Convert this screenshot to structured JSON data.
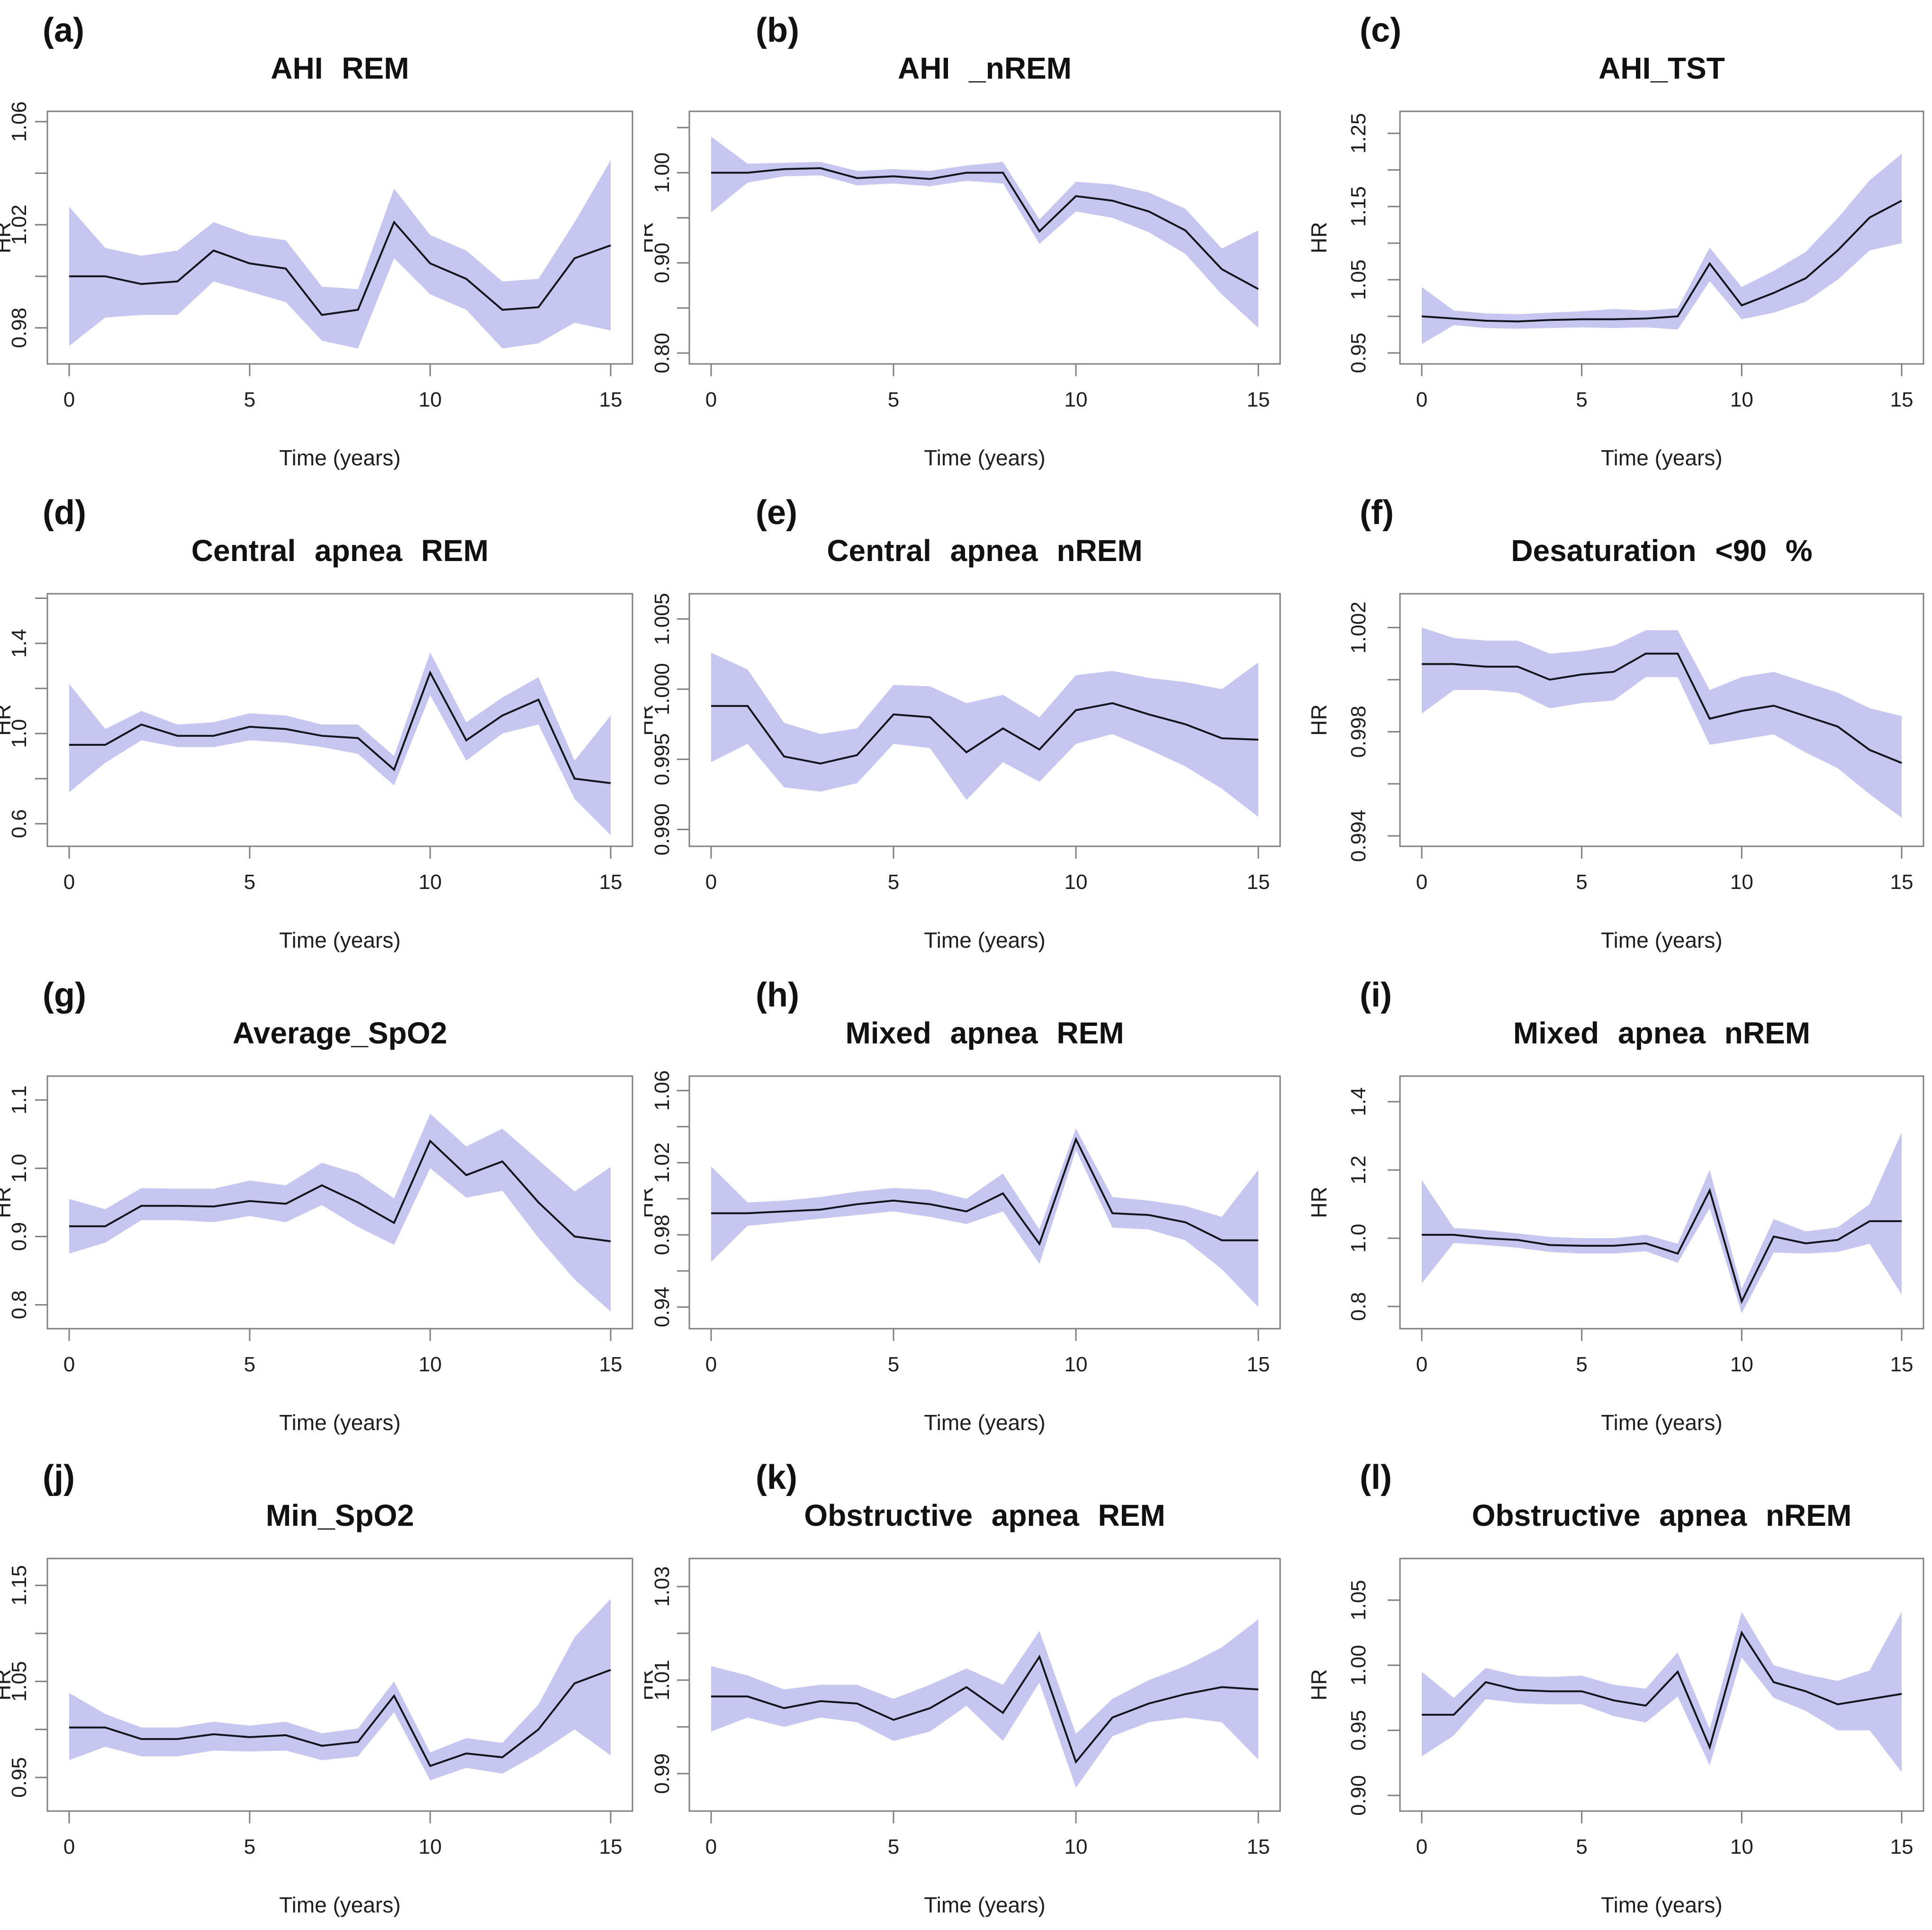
{
  "figure": {
    "background": "#ffffff",
    "band_color": "#c6c6f0",
    "line_color": "#14141d",
    "frame_color": "#7f7f7f",
    "text_color": "#1e1e1e",
    "title_color": "#111111",
    "xlabel": "Time (years)",
    "ylabel": "HR",
    "x_ticks": [
      {
        "v": 0,
        "t": "0"
      },
      {
        "v": 5,
        "t": "5"
      },
      {
        "v": 10,
        "t": "10"
      },
      {
        "v": 15,
        "t": "15"
      }
    ],
    "x_range": [
      0,
      15
    ]
  },
  "chart_data": [
    {
      "type": "line",
      "panel": "a",
      "label": "(a)",
      "title": "AHI REM",
      "xlabel": "Time (years)",
      "ylabel": "HR",
      "legend": "none",
      "grid": false,
      "x": [
        0,
        1,
        2,
        3,
        4,
        5,
        6,
        7,
        8,
        9,
        10,
        11,
        12,
        13,
        14,
        15
      ],
      "hr": [
        1.0,
        1.0,
        0.997,
        0.998,
        1.01,
        1.005,
        1.003,
        0.985,
        0.987,
        1.021,
        1.005,
        0.999,
        0.987,
        0.988,
        1.007,
        1.012
      ],
      "ci_upper": [
        1.027,
        1.011,
        1.008,
        1.01,
        1.021,
        1.016,
        1.014,
        0.996,
        0.995,
        1.034,
        1.016,
        1.01,
        0.998,
        0.999,
        1.021,
        1.045
      ],
      "ci_lower": [
        0.973,
        0.984,
        0.985,
        0.985,
        0.998,
        0.994,
        0.99,
        0.975,
        0.972,
        1.007,
        0.993,
        0.987,
        0.972,
        0.974,
        0.982,
        0.979
      ],
      "ylim": [
        0.966,
        1.064
      ],
      "yticks": [
        {
          "v": 0.98,
          "t": "0.98"
        },
        {
          "v": 1.0,
          "t": ""
        },
        {
          "v": 1.02,
          "t": "1.02"
        },
        {
          "v": 1.04,
          "t": ""
        },
        {
          "v": 1.06,
          "t": "1.06"
        }
      ]
    },
    {
      "type": "line",
      "panel": "b",
      "label": "(b)",
      "title": "AHI _nREM",
      "xlabel": "Time (years)",
      "ylabel": "HR",
      "legend": "none",
      "grid": false,
      "x": [
        0,
        1,
        2,
        3,
        4,
        5,
        6,
        7,
        8,
        9,
        10,
        11,
        12,
        13,
        14,
        15
      ],
      "hr": [
        1.0,
        1.0,
        1.004,
        1.005,
        0.994,
        0.996,
        0.993,
        1.0,
        1.0,
        0.935,
        0.974,
        0.969,
        0.957,
        0.936,
        0.893,
        0.871
      ],
      "ci_upper": [
        1.04,
        1.01,
        1.011,
        1.012,
        1.002,
        1.004,
        1.002,
        1.008,
        1.012,
        0.948,
        0.99,
        0.987,
        0.978,
        0.96,
        0.916,
        0.936
      ],
      "ci_lower": [
        0.956,
        0.989,
        0.996,
        0.997,
        0.986,
        0.988,
        0.985,
        0.991,
        0.988,
        0.921,
        0.957,
        0.95,
        0.934,
        0.91,
        0.865,
        0.828
      ],
      "ylim": [
        0.788,
        1.068
      ],
      "yticks": [
        {
          "v": 0.8,
          "t": "0.80"
        },
        {
          "v": 0.85,
          "t": ""
        },
        {
          "v": 0.9,
          "t": "0.90"
        },
        {
          "v": 0.95,
          "t": ""
        },
        {
          "v": 1.0,
          "t": "1.00"
        },
        {
          "v": 1.05,
          "t": ""
        }
      ]
    },
    {
      "type": "line",
      "panel": "c",
      "label": "(c)",
      "title": "AHI_TST",
      "xlabel": "Time (years)",
      "ylabel": "HR",
      "legend": "none",
      "grid": false,
      "x": [
        0,
        1,
        2,
        3,
        4,
        5,
        6,
        7,
        8,
        9,
        10,
        11,
        12,
        13,
        14,
        15
      ],
      "hr": [
        1.0,
        0.997,
        0.994,
        0.993,
        0.995,
        0.996,
        0.996,
        0.997,
        1.0,
        1.072,
        1.015,
        1.032,
        1.052,
        1.09,
        1.135,
        1.158
      ],
      "ci_upper": [
        1.04,
        1.008,
        1.004,
        1.003,
        1.005,
        1.007,
        1.01,
        1.008,
        1.011,
        1.094,
        1.04,
        1.062,
        1.088,
        1.134,
        1.186,
        1.222
      ],
      "ci_lower": [
        0.962,
        0.988,
        0.984,
        0.983,
        0.984,
        0.985,
        0.984,
        0.985,
        0.982,
        1.048,
        0.996,
        1.005,
        1.02,
        1.05,
        1.09,
        1.1
      ],
      "ylim": [
        0.935,
        1.28
      ],
      "yticks": [
        {
          "v": 0.95,
          "t": "0.95"
        },
        {
          "v": 1.0,
          "t": ""
        },
        {
          "v": 1.05,
          "t": "1.05"
        },
        {
          "v": 1.1,
          "t": ""
        },
        {
          "v": 1.15,
          "t": "1.15"
        },
        {
          "v": 1.2,
          "t": ""
        },
        {
          "v": 1.25,
          "t": "1.25"
        }
      ]
    },
    {
      "type": "line",
      "panel": "d",
      "label": "(d)",
      "title": "Central apnea REM",
      "xlabel": "Time (years)",
      "ylabel": "HR",
      "legend": "none",
      "grid": false,
      "x": [
        0,
        1,
        2,
        3,
        4,
        5,
        6,
        7,
        8,
        9,
        10,
        11,
        12,
        13,
        14,
        15
      ],
      "hr": [
        0.95,
        0.95,
        1.04,
        0.99,
        0.99,
        1.03,
        1.02,
        0.99,
        0.98,
        0.84,
        1.27,
        0.97,
        1.08,
        1.15,
        0.8,
        0.78
      ],
      "ci_upper": [
        1.22,
        1.02,
        1.1,
        1.04,
        1.05,
        1.09,
        1.08,
        1.04,
        1.04,
        0.9,
        1.36,
        1.05,
        1.16,
        1.25,
        0.88,
        1.08
      ],
      "ci_lower": [
        0.74,
        0.87,
        0.97,
        0.94,
        0.94,
        0.97,
        0.96,
        0.94,
        0.91,
        0.77,
        1.17,
        0.88,
        1.0,
        1.04,
        0.71,
        0.55
      ],
      "ylim": [
        0.5,
        1.62
      ],
      "yticks": [
        {
          "v": 0.6,
          "t": "0.6"
        },
        {
          "v": 0.8,
          "t": ""
        },
        {
          "v": 1.0,
          "t": "1.0"
        },
        {
          "v": 1.2,
          "t": ""
        },
        {
          "v": 1.4,
          "t": "1.4"
        },
        {
          "v": 1.6,
          "t": ""
        }
      ]
    },
    {
      "type": "line",
      "panel": "e",
      "label": "(e)",
      "title": "Central apnea nREM",
      "xlabel": "Time (years)",
      "ylabel": "HR",
      "legend": "none",
      "grid": false,
      "x": [
        0,
        1,
        2,
        3,
        4,
        5,
        6,
        7,
        8,
        9,
        10,
        11,
        12,
        13,
        14,
        15
      ],
      "hr": [
        0.9988,
        0.9988,
        0.9952,
        0.9947,
        0.9953,
        0.9982,
        0.998,
        0.9955,
        0.9972,
        0.9957,
        0.9985,
        0.999,
        0.9982,
        0.9975,
        0.9965,
        0.9964
      ],
      "ci_upper": [
        1.0026,
        1.0014,
        0.9976,
        0.9968,
        0.9972,
        1.0003,
        1.0002,
        0.999,
        0.9996,
        0.998,
        1.001,
        1.0013,
        1.0008,
        1.0005,
        1.0,
        1.0019
      ],
      "ci_lower": [
        0.9948,
        0.9961,
        0.993,
        0.9927,
        0.9933,
        0.9961,
        0.9958,
        0.9921,
        0.9948,
        0.9934,
        0.9961,
        0.9968,
        0.9957,
        0.9945,
        0.9929,
        0.9909
      ],
      "ylim": [
        0.9888,
        1.0068
      ],
      "yticks": [
        {
          "v": 0.99,
          "t": "0.990"
        },
        {
          "v": 0.995,
          "t": "0.995"
        },
        {
          "v": 1.0,
          "t": "1.000"
        },
        {
          "v": 1.005,
          "t": "1.005"
        }
      ]
    },
    {
      "type": "line",
      "panel": "f",
      "label": "(f)",
      "title": "Desaturation <90 %",
      "xlabel": "Time (years)",
      "ylabel": "HR",
      "legend": "none",
      "grid": false,
      "x": [
        0,
        1,
        2,
        3,
        4,
        5,
        6,
        7,
        8,
        9,
        10,
        11,
        12,
        13,
        14,
        15
      ],
      "hr": [
        1.0006,
        1.0006,
        1.0005,
        1.0005,
        1.0,
        1.0002,
        1.0003,
        1.001,
        1.001,
        0.9985,
        0.9988,
        0.999,
        0.9986,
        0.9982,
        0.9973,
        0.9968
      ],
      "ci_upper": [
        1.002,
        1.0016,
        1.0015,
        1.0015,
        1.001,
        1.0011,
        1.0013,
        1.0019,
        1.0019,
        0.9996,
        1.0001,
        1.0003,
        0.9999,
        0.9995,
        0.9989,
        0.9986
      ],
      "ci_lower": [
        0.9987,
        0.9996,
        0.9996,
        0.9995,
        0.9989,
        0.9991,
        0.9992,
        1.0001,
        1.0001,
        0.9975,
        0.9977,
        0.9979,
        0.9972,
        0.9966,
        0.9956,
        0.9947
      ],
      "ylim": [
        0.9936,
        1.0033
      ],
      "yticks": [
        {
          "v": 0.994,
          "t": "0.994"
        },
        {
          "v": 0.996,
          "t": ""
        },
        {
          "v": 0.998,
          "t": "0.998"
        },
        {
          "v": 1.0,
          "t": ""
        },
        {
          "v": 1.002,
          "t": "1.002"
        }
      ]
    },
    {
      "type": "line",
      "panel": "g",
      "label": "(g)",
      "title": "Average_SpO2",
      "xlabel": "Time (years)",
      "ylabel": "HR",
      "legend": "none",
      "grid": false,
      "x": [
        0,
        1,
        2,
        3,
        4,
        5,
        6,
        7,
        8,
        9,
        10,
        11,
        12,
        13,
        14,
        15
      ],
      "hr": [
        0.915,
        0.915,
        0.945,
        0.945,
        0.944,
        0.952,
        0.948,
        0.975,
        0.95,
        0.92,
        1.04,
        0.99,
        1.01,
        0.95,
        0.9,
        0.893
      ],
      "ci_upper": [
        0.955,
        0.94,
        0.971,
        0.97,
        0.97,
        0.982,
        0.975,
        1.008,
        0.992,
        0.956,
        1.08,
        1.032,
        1.058,
        1.012,
        0.966,
        1.002
      ],
      "ci_lower": [
        0.875,
        0.891,
        0.924,
        0.924,
        0.921,
        0.93,
        0.921,
        0.946,
        0.914,
        0.888,
        1.0,
        0.957,
        0.967,
        0.898,
        0.837,
        0.79
      ],
      "ylim": [
        0.765,
        1.135
      ],
      "yticks": [
        {
          "v": 0.8,
          "t": "0.8"
        },
        {
          "v": 0.9,
          "t": "0.9"
        },
        {
          "v": 1.0,
          "t": "1.0"
        },
        {
          "v": 1.1,
          "t": "1.1"
        }
      ]
    },
    {
      "type": "line",
      "panel": "h",
      "label": "(h)",
      "title": "Mixed apnea REM",
      "xlabel": "Time (years)",
      "ylabel": "HR",
      "legend": "none",
      "grid": false,
      "x": [
        0,
        1,
        2,
        3,
        4,
        5,
        6,
        7,
        8,
        9,
        10,
        11,
        12,
        13,
        14,
        15
      ],
      "hr": [
        0.992,
        0.992,
        0.993,
        0.994,
        0.997,
        0.999,
        0.997,
        0.993,
        1.003,
        0.975,
        1.033,
        0.992,
        0.991,
        0.987,
        0.977,
        0.977
      ],
      "ci_upper": [
        1.018,
        0.998,
        0.999,
        1.001,
        1.004,
        1.006,
        1.005,
        1.0,
        1.014,
        0.983,
        1.039,
        1.001,
        0.999,
        0.996,
        0.99,
        1.016
      ],
      "ci_lower": [
        0.965,
        0.985,
        0.987,
        0.989,
        0.991,
        0.993,
        0.99,
        0.986,
        0.993,
        0.964,
        1.027,
        0.984,
        0.983,
        0.977,
        0.961,
        0.94
      ],
      "ylim": [
        0.928,
        1.068
      ],
      "yticks": [
        {
          "v": 0.94,
          "t": "0.94"
        },
        {
          "v": 0.96,
          "t": ""
        },
        {
          "v": 0.98,
          "t": "0.98"
        },
        {
          "v": 1.0,
          "t": ""
        },
        {
          "v": 1.02,
          "t": "1.02"
        },
        {
          "v": 1.04,
          "t": ""
        },
        {
          "v": 1.06,
          "t": "1.06"
        }
      ]
    },
    {
      "type": "line",
      "panel": "i",
      "label": "(i)",
      "title": "Mixed apnea nREM",
      "xlabel": "Time (years)",
      "ylabel": "HR",
      "legend": "none",
      "grid": false,
      "x": [
        0,
        1,
        2,
        3,
        4,
        5,
        6,
        7,
        8,
        9,
        10,
        11,
        12,
        13,
        14,
        15
      ],
      "hr": [
        1.01,
        1.01,
        1.0,
        0.995,
        0.98,
        0.978,
        0.978,
        0.985,
        0.955,
        1.14,
        0.815,
        1.005,
        0.985,
        0.995,
        1.05,
        1.05
      ],
      "ci_upper": [
        1.17,
        1.03,
        1.024,
        1.014,
        1.004,
        1.0,
        1.0,
        1.01,
        0.984,
        1.2,
        0.852,
        1.056,
        1.02,
        1.032,
        1.1,
        1.31
      ],
      "ci_lower": [
        0.868,
        0.986,
        0.98,
        0.972,
        0.96,
        0.955,
        0.955,
        0.962,
        0.928,
        1.088,
        0.78,
        0.958,
        0.955,
        0.96,
        0.984,
        0.835
      ],
      "ylim": [
        0.735,
        1.475
      ],
      "yticks": [
        {
          "v": 0.8,
          "t": "0.8"
        },
        {
          "v": 1.0,
          "t": "1.0"
        },
        {
          "v": 1.2,
          "t": "1.2"
        },
        {
          "v": 1.4,
          "t": "1.4"
        }
      ]
    },
    {
      "type": "line",
      "panel": "j",
      "label": "(j)",
      "title": "Min_SpO2",
      "xlabel": "Time (years)",
      "ylabel": "HR",
      "legend": "none",
      "grid": false,
      "x": [
        0,
        1,
        2,
        3,
        4,
        5,
        6,
        7,
        8,
        9,
        10,
        11,
        12,
        13,
        14,
        15
      ],
      "hr": [
        1.002,
        1.002,
        0.99,
        0.99,
        0.995,
        0.992,
        0.994,
        0.983,
        0.987,
        1.035,
        0.962,
        0.975,
        0.971,
        1.0,
        1.048,
        1.062
      ],
      "ci_upper": [
        1.038,
        1.016,
        1.002,
        1.002,
        1.008,
        1.004,
        1.008,
        0.996,
        1.001,
        1.05,
        0.976,
        0.991,
        0.986,
        1.026,
        1.096,
        1.136
      ],
      "ci_lower": [
        0.968,
        0.982,
        0.972,
        0.972,
        0.978,
        0.977,
        0.978,
        0.968,
        0.972,
        1.018,
        0.947,
        0.96,
        0.954,
        0.975,
        1.0,
        0.973
      ],
      "ylim": [
        0.915,
        1.178
      ],
      "yticks": [
        {
          "v": 0.95,
          "t": "0.95"
        },
        {
          "v": 1.0,
          "t": ""
        },
        {
          "v": 1.05,
          "t": "1.05"
        },
        {
          "v": 1.1,
          "t": ""
        },
        {
          "v": 1.15,
          "t": "1.15"
        }
      ]
    },
    {
      "type": "line",
      "panel": "k",
      "label": "(k)",
      "title": "Obstructive apnea REM",
      "xlabel": "Time (years)",
      "ylabel": "HR",
      "legend": "none",
      "grid": false,
      "x": [
        0,
        1,
        2,
        3,
        4,
        5,
        6,
        7,
        8,
        9,
        10,
        11,
        12,
        13,
        14,
        15
      ],
      "hr": [
        1.0065,
        1.0065,
        1.004,
        1.0055,
        1.005,
        1.0015,
        1.004,
        1.0085,
        1.003,
        1.015,
        0.9925,
        1.002,
        1.005,
        1.007,
        1.0085,
        1.008
      ],
      "ci_upper": [
        1.013,
        1.011,
        1.008,
        1.009,
        1.009,
        1.006,
        1.009,
        1.0125,
        1.009,
        1.0205,
        0.9985,
        1.006,
        1.01,
        1.013,
        1.017,
        1.023
      ],
      "ci_lower": [
        0.999,
        1.002,
        1.0,
        1.002,
        1.001,
        0.997,
        0.999,
        1.0045,
        0.997,
        1.0095,
        0.987,
        0.998,
        1.001,
        1.002,
        1.001,
        0.993
      ],
      "ylim": [
        0.982,
        1.036
      ],
      "yticks": [
        {
          "v": 0.99,
          "t": "0.99"
        },
        {
          "v": 1.0,
          "t": ""
        },
        {
          "v": 1.01,
          "t": "1.01"
        },
        {
          "v": 1.02,
          "t": ""
        },
        {
          "v": 1.03,
          "t": "1.03"
        }
      ]
    },
    {
      "type": "line",
      "panel": "l",
      "label": "(l)",
      "title": "Obstructive apnea nREM",
      "xlabel": "Time (years)",
      "ylabel": "HR",
      "legend": "none",
      "grid": false,
      "x": [
        0,
        1,
        2,
        3,
        4,
        5,
        6,
        7,
        8,
        9,
        10,
        11,
        12,
        13,
        14,
        15
      ],
      "hr": [
        0.962,
        0.962,
        0.987,
        0.981,
        0.98,
        0.98,
        0.973,
        0.969,
        0.995,
        0.937,
        1.025,
        0.987,
        0.98,
        0.97,
        0.974,
        0.978
      ],
      "ci_upper": [
        0.995,
        0.975,
        0.998,
        0.992,
        0.991,
        0.992,
        0.985,
        0.982,
        1.01,
        0.951,
        1.041,
        1.0,
        0.993,
        0.988,
        0.996,
        1.041
      ],
      "ci_lower": [
        0.93,
        0.946,
        0.974,
        0.971,
        0.97,
        0.97,
        0.961,
        0.956,
        0.976,
        0.923,
        1.006,
        0.975,
        0.965,
        0.95,
        0.95,
        0.918
      ],
      "ylim": [
        0.888,
        1.082
      ],
      "yticks": [
        {
          "v": 0.9,
          "t": "0.90"
        },
        {
          "v": 0.95,
          "t": "0.95"
        },
        {
          "v": 1.0,
          "t": "1.00"
        },
        {
          "v": 1.05,
          "t": "1.05"
        }
      ]
    }
  ]
}
